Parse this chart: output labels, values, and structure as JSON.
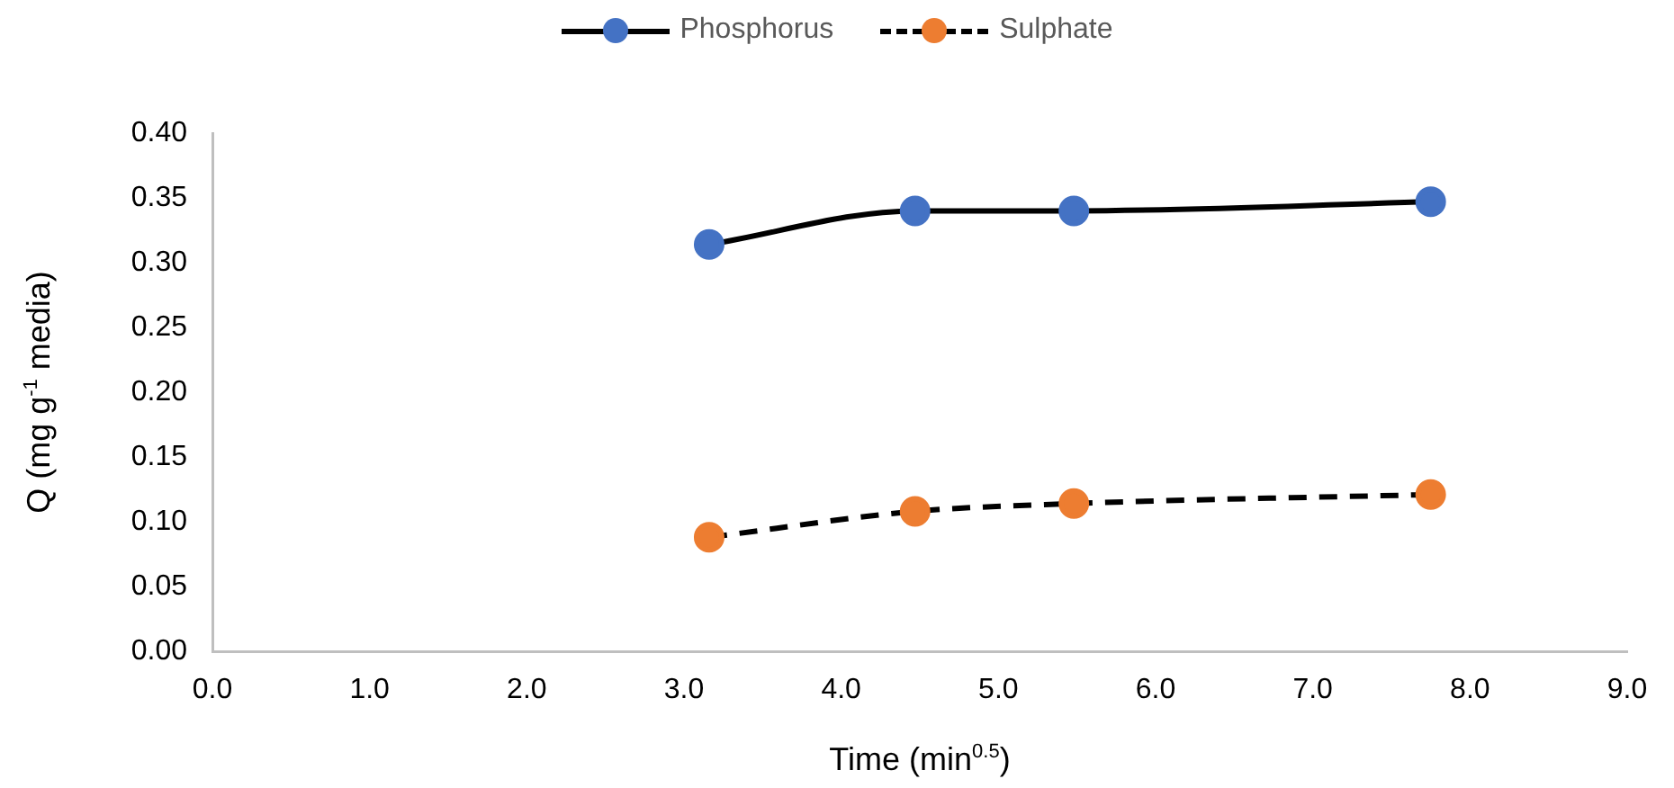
{
  "chart_data": {
    "type": "line",
    "xlabel": "Time (min$^{0.5}$)",
    "ylabel": "Q (mg g$^{-1}$ media)",
    "x": [
      3.16,
      4.47,
      5.48,
      7.75
    ],
    "series": [
      {
        "name": "Phosphorus",
        "color": "#4472c4",
        "values": [
          0.314,
          0.34,
          0.34,
          0.347
        ],
        "line_style": "solid"
      },
      {
        "name": "Sulphate",
        "color": "#ed7d31",
        "values": [
          0.088,
          0.108,
          0.114,
          0.121
        ],
        "line_style": "dashed"
      }
    ],
    "xlim": [
      0,
      9
    ],
    "xticks": [
      {
        "value": 0,
        "label": "0.0"
      },
      {
        "value": 1,
        "label": "1.0"
      },
      {
        "value": 2,
        "label": "2.0"
      },
      {
        "value": 3,
        "label": "3.0"
      },
      {
        "value": 4,
        "label": "4.0"
      },
      {
        "value": 5,
        "label": "5.0"
      },
      {
        "value": 6,
        "label": "6.0"
      },
      {
        "value": 7,
        "label": "7.0"
      },
      {
        "value": 8,
        "label": "8.0"
      },
      {
        "value": 9,
        "label": "9.0"
      }
    ],
    "ylim": [
      0,
      0.4
    ],
    "yticks": [
      {
        "value": 0,
        "label": "0.00"
      },
      {
        "value": 0.05,
        "label": "0.05"
      },
      {
        "value": 0.1,
        "label": "0.10"
      },
      {
        "value": 0.15,
        "label": "0.15"
      },
      {
        "value": 0.2,
        "label": "0.20"
      },
      {
        "value": 0.25,
        "label": "0.25"
      },
      {
        "value": 0.3,
        "label": "0.30"
      },
      {
        "value": 0.35,
        "label": "0.35"
      },
      {
        "value": 0.4,
        "label": "0.40"
      }
    ],
    "grid": false,
    "legend": "top",
    "marker": "circle"
  }
}
